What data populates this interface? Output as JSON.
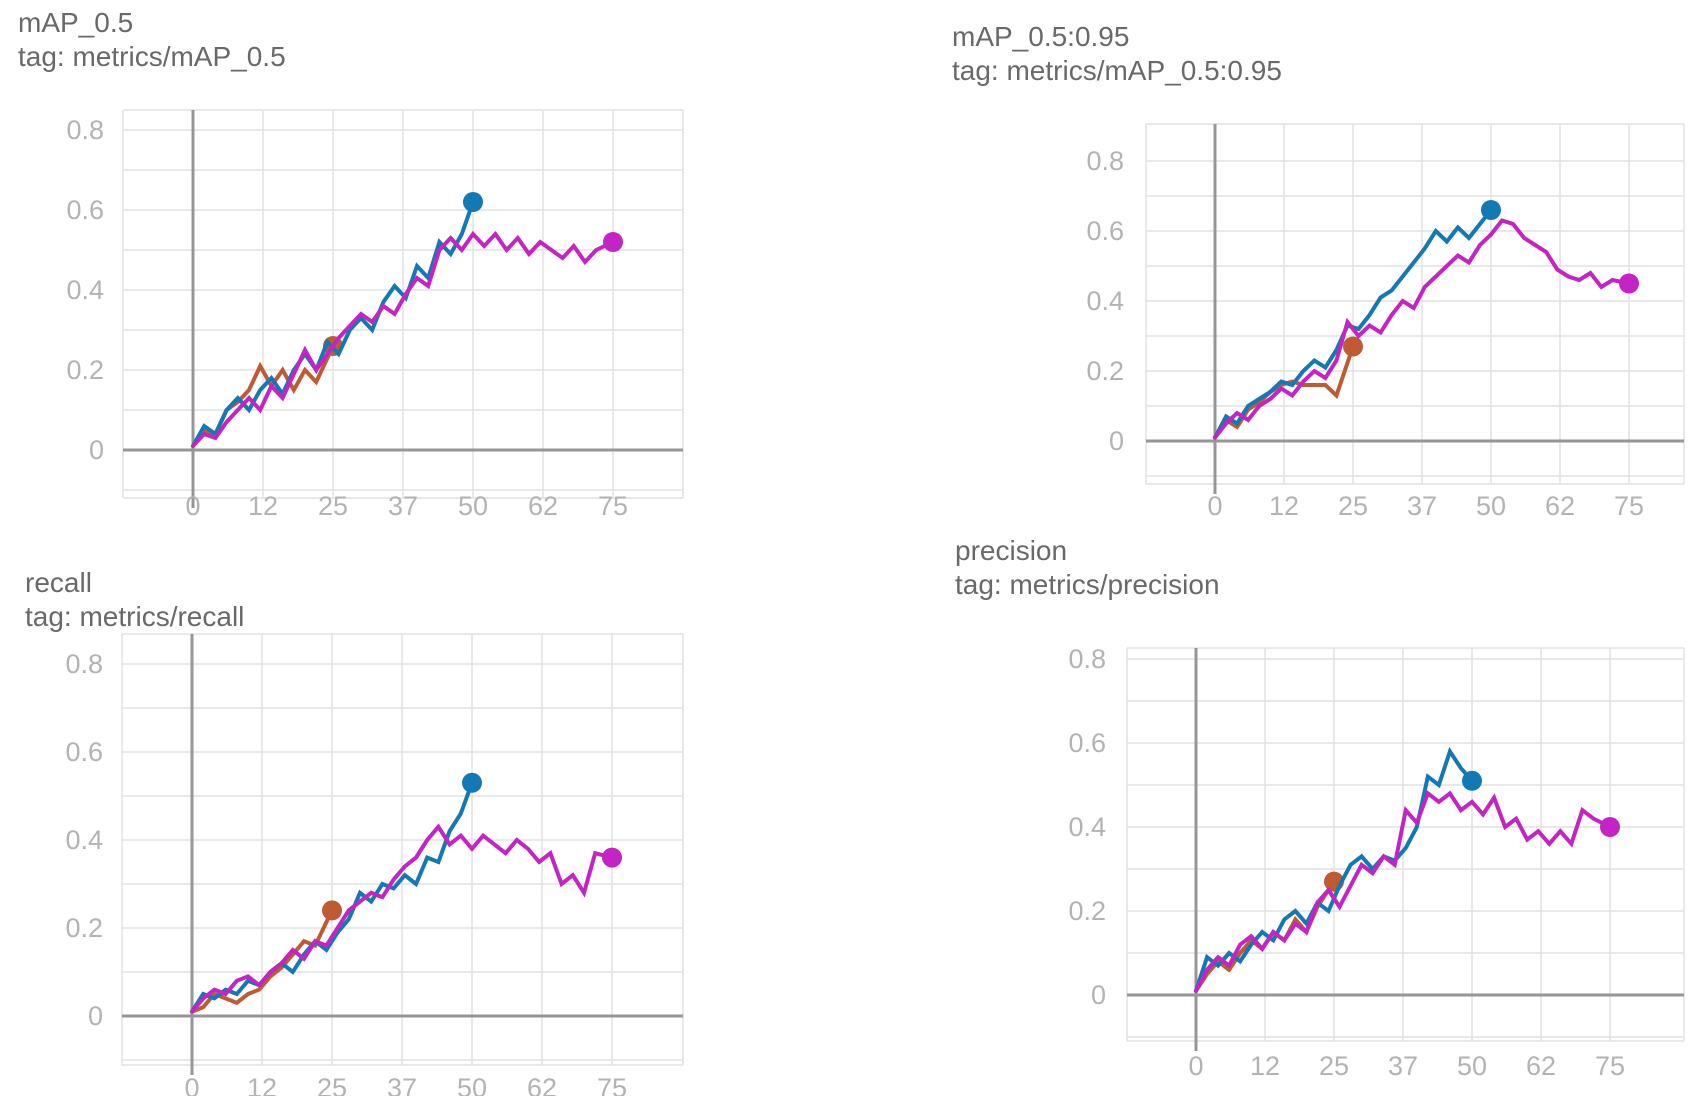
{
  "colors": {
    "run_blue": "#1279b5",
    "run_orange": "#bf5b32",
    "run_magenta": "#c324c3",
    "grid": "#e2e2e2",
    "axis": "#969696",
    "tick_label": "#b3b3b3",
    "title_text": "#696969"
  },
  "axis_ticks": {
    "x": [
      {
        "label": "0",
        "value": 0
      },
      {
        "label": "12",
        "value": 12.5
      },
      {
        "label": "25",
        "value": 25
      },
      {
        "label": "37",
        "value": 37.5
      },
      {
        "label": "50",
        "value": 50
      },
      {
        "label": "62",
        "value": 62.5
      },
      {
        "label": "75",
        "value": 75
      }
    ],
    "y": [
      {
        "label": "0",
        "value": 0
      },
      {
        "label": "0.2",
        "value": 0.2
      },
      {
        "label": "0.4",
        "value": 0.4
      },
      {
        "label": "0.6",
        "value": 0.6
      },
      {
        "label": "0.8",
        "value": 0.8
      }
    ]
  },
  "series_x": {
    "blue": [
      0,
      2,
      4,
      6,
      8,
      10,
      12,
      14,
      16,
      18,
      20,
      22,
      24,
      26,
      28,
      30,
      32,
      34,
      36,
      38,
      40,
      42,
      44,
      46,
      48,
      50
    ],
    "orange": [
      0,
      2,
      4,
      6,
      8,
      10,
      12,
      14,
      16,
      18,
      20,
      22,
      25
    ],
    "magenta": [
      0,
      2,
      4,
      6,
      8,
      10,
      12,
      14,
      16,
      18,
      20,
      22,
      24,
      26,
      28,
      30,
      32,
      34,
      36,
      38,
      40,
      42,
      44,
      46,
      48,
      50,
      52,
      54,
      56,
      58,
      60,
      62,
      64,
      66,
      68,
      70,
      72,
      75
    ]
  },
  "chart_data": [
    {
      "id": "map_05",
      "type": "line",
      "title": "mAP_0.5",
      "tag": "tag: metrics/mAP_0.5",
      "xlim": [
        -12.5,
        87.5
      ],
      "ylim": [
        -0.1,
        0.9
      ],
      "grid": true,
      "series": [
        {
          "name": "blue",
          "color_key": "run_blue",
          "x_key": "blue",
          "end_marker": true,
          "y": [
            0.01,
            0.06,
            0.04,
            0.1,
            0.13,
            0.1,
            0.15,
            0.18,
            0.14,
            0.2,
            0.24,
            0.2,
            0.27,
            0.24,
            0.3,
            0.33,
            0.3,
            0.37,
            0.41,
            0.38,
            0.46,
            0.43,
            0.52,
            0.49,
            0.54,
            0.62
          ]
        },
        {
          "name": "orange",
          "color_key": "run_orange",
          "x_key": "orange",
          "end_marker": true,
          "y": [
            0.01,
            0.05,
            0.04,
            0.1,
            0.12,
            0.15,
            0.21,
            0.16,
            0.2,
            0.15,
            0.2,
            0.17,
            0.26
          ]
        },
        {
          "name": "magenta",
          "color_key": "run_magenta",
          "x_key": "magenta",
          "end_marker": true,
          "y": [
            0.01,
            0.04,
            0.03,
            0.07,
            0.1,
            0.13,
            0.1,
            0.16,
            0.13,
            0.19,
            0.25,
            0.2,
            0.24,
            0.28,
            0.31,
            0.34,
            0.32,
            0.36,
            0.34,
            0.39,
            0.43,
            0.41,
            0.5,
            0.53,
            0.5,
            0.54,
            0.51,
            0.54,
            0.5,
            0.53,
            0.49,
            0.52,
            0.5,
            0.48,
            0.51,
            0.47,
            0.5,
            0.52
          ]
        }
      ]
    },
    {
      "id": "map_05_095",
      "type": "line",
      "title": "mAP_0.5:0.95",
      "tag": "tag: metrics/mAP_0.5:0.95",
      "xlim": [
        -12.5,
        87.5
      ],
      "ylim": [
        -0.1,
        0.9
      ],
      "grid": true,
      "series": [
        {
          "name": "blue",
          "color_key": "run_blue",
          "x_key": "blue",
          "end_marker": true,
          "y": [
            0.01,
            0.07,
            0.05,
            0.1,
            0.12,
            0.14,
            0.17,
            0.16,
            0.2,
            0.23,
            0.21,
            0.26,
            0.33,
            0.32,
            0.36,
            0.41,
            0.43,
            0.47,
            0.51,
            0.55,
            0.6,
            0.57,
            0.61,
            0.58,
            0.62,
            0.66
          ]
        },
        {
          "name": "orange",
          "color_key": "run_orange",
          "x_key": "orange",
          "end_marker": true,
          "y": [
            0.01,
            0.06,
            0.04,
            0.09,
            0.11,
            0.14,
            0.16,
            0.17,
            0.16,
            0.16,
            0.16,
            0.13,
            0.27
          ]
        },
        {
          "name": "magenta",
          "color_key": "run_magenta",
          "x_key": "magenta",
          "end_marker": true,
          "y": [
            0.01,
            0.05,
            0.08,
            0.06,
            0.1,
            0.12,
            0.15,
            0.13,
            0.17,
            0.2,
            0.18,
            0.23,
            0.34,
            0.3,
            0.33,
            0.31,
            0.36,
            0.4,
            0.38,
            0.44,
            0.47,
            0.5,
            0.53,
            0.51,
            0.56,
            0.59,
            0.63,
            0.62,
            0.58,
            0.56,
            0.54,
            0.49,
            0.47,
            0.46,
            0.48,
            0.44,
            0.46,
            0.45
          ]
        }
      ]
    },
    {
      "id": "recall",
      "type": "line",
      "title": "recall",
      "tag": "tag: metrics/recall",
      "xlim": [
        -12.5,
        87.5
      ],
      "ylim": [
        -0.1,
        0.9
      ],
      "grid": true,
      "series": [
        {
          "name": "blue",
          "color_key": "run_blue",
          "x_key": "blue",
          "end_marker": true,
          "y": [
            0.01,
            0.05,
            0.04,
            0.06,
            0.05,
            0.08,
            0.07,
            0.1,
            0.12,
            0.1,
            0.14,
            0.17,
            0.15,
            0.19,
            0.22,
            0.28,
            0.26,
            0.3,
            0.29,
            0.32,
            0.3,
            0.36,
            0.35,
            0.42,
            0.46,
            0.53
          ]
        },
        {
          "name": "orange",
          "color_key": "run_orange",
          "x_key": "orange",
          "end_marker": true,
          "y": [
            0.01,
            0.02,
            0.05,
            0.04,
            0.03,
            0.05,
            0.06,
            0.09,
            0.11,
            0.14,
            0.17,
            0.16,
            0.24
          ]
        },
        {
          "name": "magenta",
          "color_key": "run_magenta",
          "x_key": "magenta",
          "end_marker": true,
          "y": [
            0.01,
            0.04,
            0.06,
            0.05,
            0.08,
            0.09,
            0.07,
            0.1,
            0.12,
            0.15,
            0.13,
            0.17,
            0.16,
            0.2,
            0.24,
            0.26,
            0.28,
            0.27,
            0.31,
            0.34,
            0.36,
            0.4,
            0.43,
            0.39,
            0.41,
            0.38,
            0.41,
            0.39,
            0.37,
            0.4,
            0.38,
            0.35,
            0.37,
            0.3,
            0.32,
            0.28,
            0.37,
            0.36
          ]
        }
      ]
    },
    {
      "id": "precision",
      "type": "line",
      "title": "precision",
      "tag": "tag: metrics/precision",
      "xlim": [
        -12.5,
        87.5
      ],
      "ylim": [
        -0.1,
        0.9
      ],
      "grid": true,
      "series": [
        {
          "name": "blue",
          "color_key": "run_blue",
          "x_key": "blue",
          "end_marker": true,
          "y": [
            0.01,
            0.09,
            0.07,
            0.1,
            0.08,
            0.12,
            0.15,
            0.13,
            0.18,
            0.2,
            0.17,
            0.22,
            0.2,
            0.26,
            0.31,
            0.33,
            0.3,
            0.33,
            0.32,
            0.35,
            0.4,
            0.52,
            0.5,
            0.58,
            0.54,
            0.51
          ]
        },
        {
          "name": "orange",
          "color_key": "run_orange",
          "x_key": "orange",
          "end_marker": true,
          "y": [
            0.01,
            0.05,
            0.08,
            0.06,
            0.1,
            0.13,
            0.11,
            0.15,
            0.13,
            0.18,
            0.15,
            0.21,
            0.27
          ]
        },
        {
          "name": "magenta",
          "color_key": "run_magenta",
          "x_key": "magenta",
          "end_marker": true,
          "y": [
            0.01,
            0.06,
            0.09,
            0.07,
            0.12,
            0.14,
            0.11,
            0.15,
            0.13,
            0.17,
            0.15,
            0.22,
            0.25,
            0.21,
            0.26,
            0.31,
            0.29,
            0.33,
            0.31,
            0.44,
            0.41,
            0.48,
            0.46,
            0.48,
            0.44,
            0.46,
            0.43,
            0.47,
            0.4,
            0.42,
            0.37,
            0.39,
            0.36,
            0.39,
            0.36,
            0.44,
            0.42,
            0.4
          ]
        }
      ]
    }
  ]
}
